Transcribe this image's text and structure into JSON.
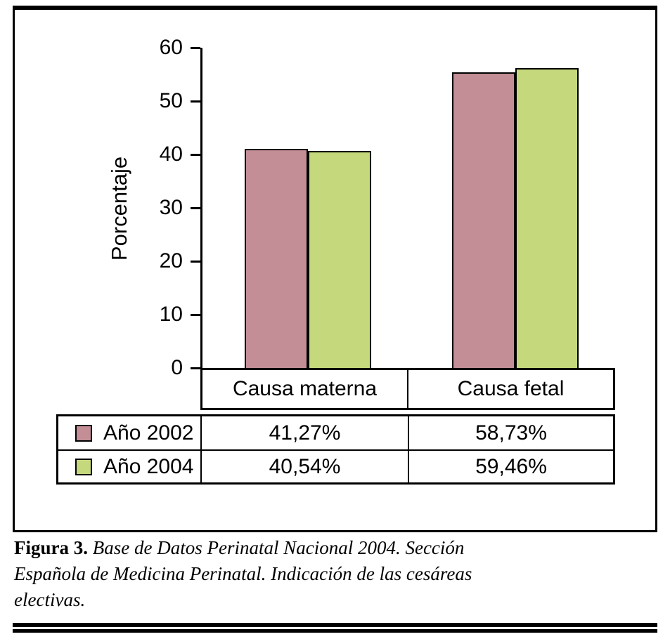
{
  "figure": {
    "caption": {
      "label": "Figura 3.",
      "text": "Base de Datos Perinatal Nacional 2004. Sección Española de Medicina Perinatal. Indicación de las cesáreas electivas."
    }
  },
  "chart_data": {
    "type": "bar",
    "title": "",
    "ylabel": "Porcentaje",
    "xlabel": "",
    "ylim": [
      0,
      60
    ],
    "yticks": [
      0,
      10,
      20,
      30,
      40,
      50,
      60
    ],
    "grid": false,
    "legend_position": "table-left",
    "categories": [
      "Causa materna",
      "Causa fetal"
    ],
    "series": [
      {
        "name": "Año 2002",
        "color": "#c38e96",
        "values": [
          41.27,
          58.73
        ],
        "labels": [
          "41,27%",
          "58,73%"
        ],
        "drawn_values": [
          41.0,
          55.4
        ]
      },
      {
        "name": "Año 2004",
        "color": "#c6d87c",
        "values": [
          40.54,
          59.46
        ],
        "labels": [
          "40,54%",
          "59,46%"
        ],
        "drawn_values": [
          40.6,
          56.2
        ]
      }
    ]
  }
}
